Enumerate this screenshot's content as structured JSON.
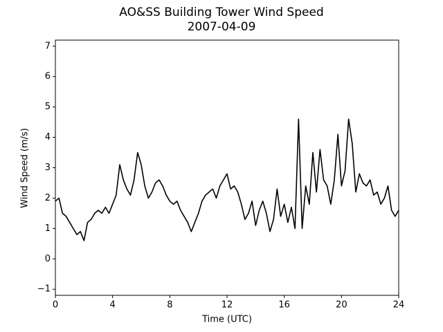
{
  "chart_data": {
    "type": "line",
    "title": "AO&SS Building Tower Wind Speed",
    "subtitle": "2007-04-09",
    "x_label": "Time (UTC)",
    "y_label": "Wind Speed (m/s)",
    "x": [
      0,
      0.25,
      0.5,
      0.75,
      1,
      1.25,
      1.5,
      1.75,
      2,
      2.25,
      2.5,
      2.75,
      3,
      3.25,
      3.5,
      3.75,
      4,
      4.25,
      4.5,
      4.75,
      5,
      5.25,
      5.5,
      5.75,
      6,
      6.25,
      6.5,
      6.75,
      7,
      7.25,
      7.5,
      7.75,
      8,
      8.25,
      8.5,
      8.75,
      9,
      9.25,
      9.5,
      9.75,
      10,
      10.25,
      10.5,
      10.75,
      11,
      11.25,
      11.5,
      11.75,
      12,
      12.25,
      12.5,
      12.75,
      13,
      13.25,
      13.5,
      13.75,
      14,
      14.25,
      14.5,
      14.75,
      15,
      15.25,
      15.5,
      15.75,
      16,
      16.25,
      16.5,
      16.75,
      17,
      17.25,
      17.5,
      17.75,
      18,
      18.25,
      18.5,
      18.75,
      19,
      19.25,
      19.5,
      19.75,
      20,
      20.25,
      20.5,
      20.75,
      21,
      21.25,
      21.5,
      21.75,
      22,
      22.25,
      22.5,
      22.75,
      23,
      23.25,
      23.5,
      23.75,
      24
    ],
    "series": [
      {
        "name": "Wind Speed",
        "color": "#000000",
        "values": [
          1.9,
          2.0,
          1.5,
          1.4,
          1.2,
          1.0,
          0.8,
          0.9,
          0.6,
          1.2,
          1.3,
          1.5,
          1.6,
          1.5,
          1.7,
          1.5,
          1.8,
          2.1,
          3.1,
          2.6,
          2.3,
          2.1,
          2.6,
          3.5,
          3.1,
          2.4,
          2.0,
          2.2,
          2.5,
          2.6,
          2.4,
          2.1,
          1.9,
          1.8,
          1.9,
          1.6,
          1.4,
          1.2,
          0.9,
          1.2,
          1.5,
          1.9,
          2.1,
          2.2,
          2.3,
          2.0,
          2.4,
          2.6,
          2.8,
          2.3,
          2.4,
          2.2,
          1.8,
          1.3,
          1.5,
          1.9,
          1.1,
          1.6,
          1.9,
          1.5,
          0.9,
          1.3,
          2.3,
          1.4,
          1.8,
          1.2,
          1.7,
          1.0,
          4.6,
          1.0,
          2.4,
          1.8,
          3.5,
          2.2,
          3.6,
          2.6,
          2.4,
          1.8,
          2.6,
          4.1,
          2.4,
          2.9,
          4.6,
          3.8,
          2.2,
          2.8,
          2.5,
          2.4,
          2.6,
          2.1,
          2.2,
          1.8,
          2.0,
          2.4,
          1.6,
          1.4,
          1.6
        ]
      }
    ],
    "xlim": [
      0,
      24
    ],
    "xticks": [
      0,
      4,
      8,
      12,
      16,
      20,
      24
    ],
    "ylim": [
      -1.2,
      7.2
    ],
    "yticks": [
      {
        "value": -1,
        "label": "−1"
      },
      0,
      1,
      2,
      3,
      4,
      5,
      6,
      7
    ],
    "grid": false
  }
}
